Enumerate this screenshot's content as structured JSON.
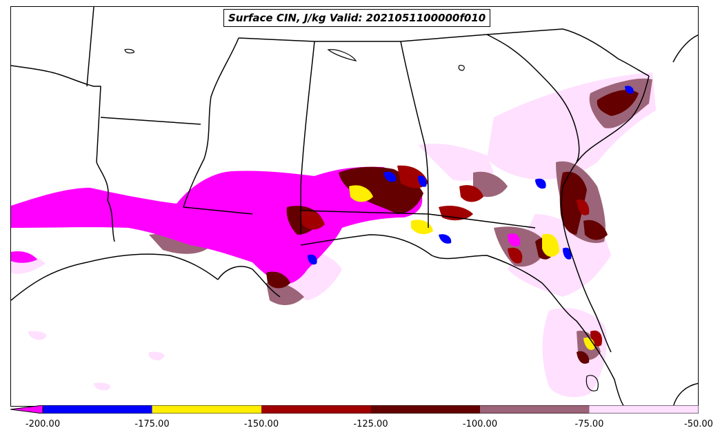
{
  "title": "Surface CIN, J/kg Valid: 2021051100000f010",
  "colorbar": {
    "min": -200,
    "max": -50,
    "extend": "min",
    "bins": [
      {
        "from": -200,
        "to": -175,
        "color": "#0000ff"
      },
      {
        "from": -175,
        "to": -150,
        "color": "#ffee00"
      },
      {
        "from": -150,
        "to": -125,
        "color": "#a00000"
      },
      {
        "from": -125,
        "to": -100,
        "color": "#640000"
      },
      {
        "from": -100,
        "to": -75,
        "color": "#9c6478"
      },
      {
        "from": -75,
        "to": -50,
        "color": "#ffe0ff"
      }
    ],
    "below_min_color": "#ff00ff",
    "ticks": [
      "-200.00",
      "-175.00",
      "-150.00",
      "-125.00",
      "-100.00",
      "-75.00",
      "-50.00"
    ]
  },
  "legend_colors": {
    "magenta": "#ff00ff",
    "blue": "#0000ff",
    "yellow": "#ffee00",
    "red": "#a00000",
    "darkred": "#640000",
    "mauve": "#9c6478",
    "pink": "#ffe0ff"
  }
}
